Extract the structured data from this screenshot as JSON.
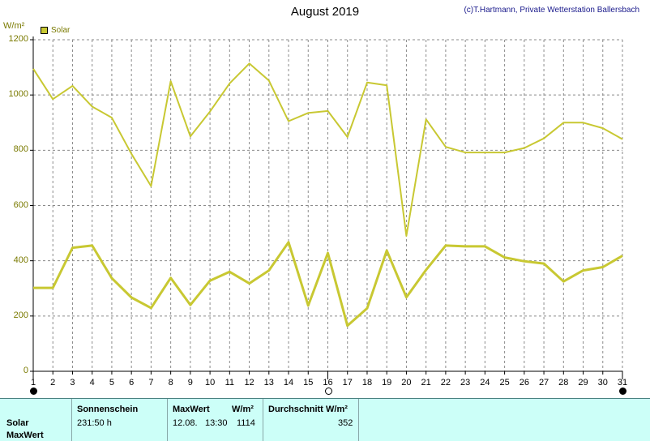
{
  "title": "August 2019",
  "copyright": "(c)T.Hartmann, Private Wetterstation Ballersbach",
  "unit": "W/m²",
  "legend": {
    "label": "Solar",
    "color": "#c8c832"
  },
  "chart_data": {
    "type": "line",
    "title": "August 2019",
    "ylabel": "W/m²",
    "ylim": [
      0,
      1200
    ],
    "yticks": [
      0,
      200,
      400,
      600,
      800,
      1000,
      1200
    ],
    "x": [
      1,
      2,
      3,
      4,
      5,
      6,
      7,
      8,
      9,
      10,
      11,
      12,
      13,
      14,
      15,
      16,
      17,
      18,
      19,
      20,
      21,
      22,
      23,
      24,
      25,
      26,
      27,
      28,
      29,
      30,
      31
    ],
    "xlim": [
      1,
      31
    ],
    "grid": true,
    "series": [
      {
        "name": "Solar",
        "style": "max",
        "color": "#c8c832",
        "values": [
          1095,
          985,
          1033,
          958,
          918,
          787,
          670,
          1050,
          850,
          940,
          1042,
          1114,
          1052,
          905,
          935,
          942,
          848,
          1045,
          1035,
          490,
          912,
          812,
          792,
          792,
          792,
          808,
          843,
          900,
          900,
          880,
          840
        ]
      },
      {
        "name": "Solar",
        "style": "average",
        "color": "#c8c832",
        "values": [
          302,
          302,
          447,
          455,
          337,
          267,
          229,
          338,
          240,
          328,
          360,
          318,
          365,
          467,
          238,
          428,
          165,
          228,
          437,
          268,
          367,
          455,
          452,
          452,
          412,
          398,
          390,
          325,
          365,
          377,
          418
        ]
      }
    ],
    "moon_phases": [
      {
        "day": 1,
        "phase": "new"
      },
      {
        "day": 16,
        "phase": "full"
      },
      {
        "day": 31,
        "phase": "new"
      }
    ]
  },
  "stats": {
    "row_labels": [
      "Solar",
      "MaxWert"
    ],
    "sonnenschein_header": "Sonnenschein",
    "sonnenschein_value": "231:50 h",
    "maxwert_header": "MaxWert",
    "maxwert_unit": "W/m²",
    "maxwert_date": "12.08.",
    "maxwert_time": "13:30",
    "maxwert_value": "1114",
    "durchschnitt_header": "Durchschnitt",
    "durchschnitt_unit": "W/m²",
    "durchschnitt_value": "352"
  }
}
